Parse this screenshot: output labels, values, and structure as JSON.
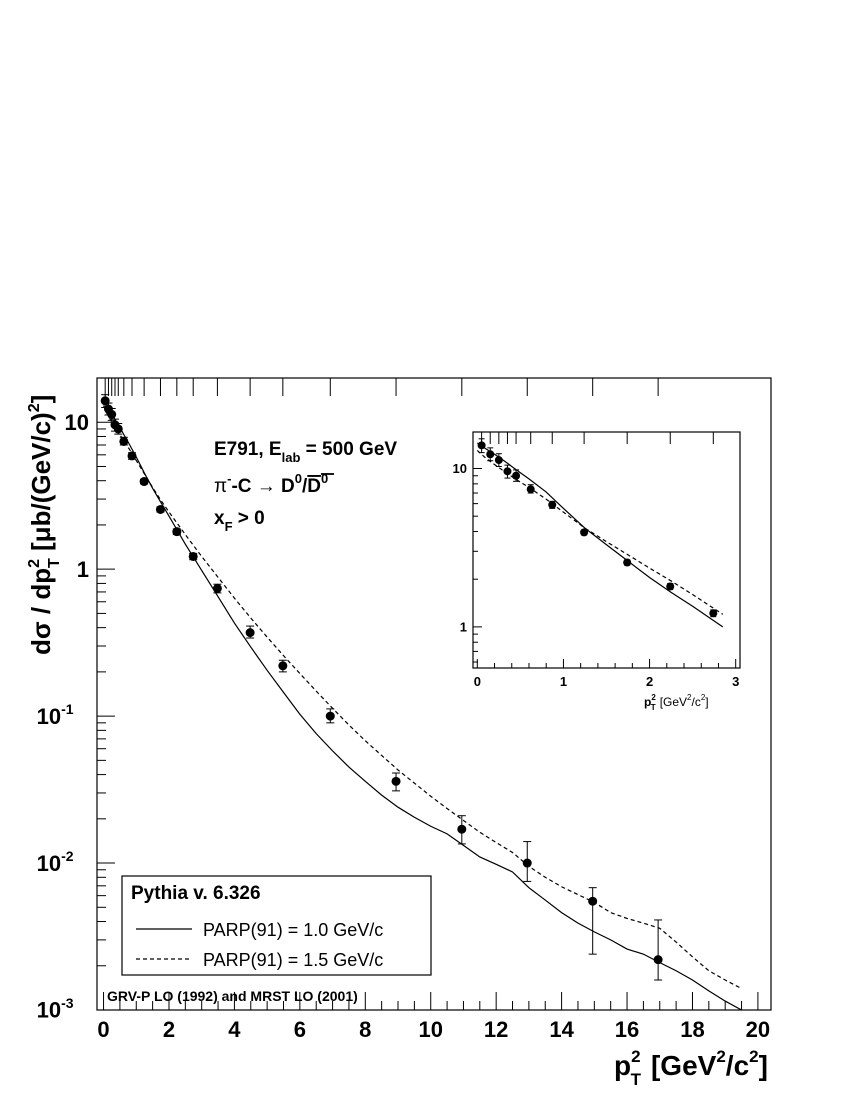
{
  "chart_data": [
    {
      "id": "main",
      "type": "scatter",
      "xscale": "linear",
      "yscale": "log",
      "xlim": [
        -0.2,
        20.4
      ],
      "ylim": [
        0.001,
        20
      ],
      "xticks": [
        0,
        2,
        4,
        6,
        8,
        10,
        12,
        14,
        16,
        18,
        20
      ],
      "xlabel": {
        "base": "p",
        "sup": "2",
        "sub": "T",
        "unit": "[GeV",
        "unit_sup": "2",
        "unit_mid": "/c",
        "unit_sup2": "2",
        "unit_end": "]"
      },
      "ylabel": {
        "a": "dσ / dp",
        "sup": "2",
        "sub": "T",
        "b": " [μb/(GeV/c)",
        "sup2": "2",
        "c": "]"
      },
      "yticks": [
        {
          "value": 10,
          "label": "10",
          "exp": ""
        },
        {
          "value": 1,
          "label": "1",
          "exp": ""
        },
        {
          "value": 0.1,
          "label": "10",
          "exp": "-1"
        },
        {
          "value": 0.01,
          "label": "10",
          "exp": "-2"
        },
        {
          "value": 0.001,
          "label": "10",
          "exp": "-3"
        }
      ],
      "rug": [
        0.05,
        0.15,
        0.25,
        0.35,
        0.45,
        0.62,
        0.87,
        1.24,
        1.74,
        2.24,
        2.74,
        3.48,
        4.48,
        5.48,
        6.93,
        8.94,
        10.95,
        12.95,
        14.95,
        16.95
      ],
      "points": [
        {
          "x": 0.05,
          "y": 14.0,
          "lo": 12.6,
          "hi": 15.4
        },
        {
          "x": 0.15,
          "y": 12.3,
          "lo": 11.2,
          "hi": 13.5
        },
        {
          "x": 0.25,
          "y": 11.3,
          "lo": 10.3,
          "hi": 12.4
        },
        {
          "x": 0.35,
          "y": 9.6,
          "lo": 8.7,
          "hi": 10.5
        },
        {
          "x": 0.45,
          "y": 9.0,
          "lo": 8.3,
          "hi": 9.8
        },
        {
          "x": 0.62,
          "y": 7.4,
          "lo": 7.0,
          "hi": 7.9
        },
        {
          "x": 0.87,
          "y": 5.9,
          "lo": 5.6,
          "hi": 6.2
        },
        {
          "x": 1.24,
          "y": 3.95,
          "lo": 3.8,
          "hi": 4.1
        },
        {
          "x": 1.74,
          "y": 2.55,
          "lo": 2.45,
          "hi": 2.65
        },
        {
          "x": 2.24,
          "y": 1.8,
          "lo": 1.72,
          "hi": 1.88
        },
        {
          "x": 2.74,
          "y": 1.22,
          "lo": 1.16,
          "hi": 1.28
        },
        {
          "x": 3.48,
          "y": 0.74,
          "lo": 0.69,
          "hi": 0.79
        },
        {
          "x": 4.48,
          "y": 0.37,
          "lo": 0.34,
          "hi": 0.41
        },
        {
          "x": 5.48,
          "y": 0.22,
          "lo": 0.2,
          "hi": 0.24
        },
        {
          "x": 6.93,
          "y": 0.1,
          "lo": 0.09,
          "hi": 0.112
        },
        {
          "x": 8.94,
          "y": 0.036,
          "lo": 0.031,
          "hi": 0.041
        },
        {
          "x": 10.95,
          "y": 0.017,
          "lo": 0.0135,
          "hi": 0.021
        },
        {
          "x": 12.95,
          "y": 0.01,
          "lo": 0.0075,
          "hi": 0.014
        },
        {
          "x": 14.95,
          "y": 0.0055,
          "lo": 0.0024,
          "hi": 0.0068
        },
        {
          "x": 16.95,
          "y": 0.0022,
          "lo": 0.0016,
          "hi": 0.0041
        }
      ],
      "series": [
        {
          "name": "PARP(91) = 1.0 GeV/c",
          "style": "solid",
          "x": [
            0.0,
            0.1,
            0.2,
            0.3,
            0.4,
            0.5,
            0.6,
            0.8,
            1.0,
            1.25,
            1.5,
            1.75,
            2.0,
            2.5,
            3.0,
            3.5,
            4.0,
            4.5,
            5.0,
            5.5,
            6.0,
            6.5,
            7.0,
            7.5,
            8.0,
            8.5,
            9.0,
            9.5,
            10.0,
            10.5,
            11.0,
            11.5,
            12.0,
            12.5,
            13.0,
            13.5,
            14.0,
            14.5,
            15.0,
            15.5,
            16.0,
            16.5,
            17.0,
            17.5,
            18.0,
            18.5,
            19.0,
            19.5
          ],
          "y": [
            14.8,
            13.2,
            12.0,
            10.9,
            10.0,
            9.2,
            8.4,
            7.0,
            5.8,
            4.5,
            3.55,
            2.85,
            2.3,
            1.48,
            0.98,
            0.65,
            0.43,
            0.295,
            0.205,
            0.145,
            0.103,
            0.076,
            0.058,
            0.045,
            0.036,
            0.029,
            0.024,
            0.0205,
            0.0178,
            0.0158,
            0.0132,
            0.011,
            0.0098,
            0.0087,
            0.0068,
            0.0056,
            0.0046,
            0.0039,
            0.0034,
            0.003,
            0.0026,
            0.0024,
            0.0021,
            0.00185,
            0.0016,
            0.00135,
            0.00115,
            0.001
          ]
        },
        {
          "name": "PARP(91) = 1.5 GeV/c",
          "style": "dashed",
          "x": [
            0.0,
            0.1,
            0.2,
            0.3,
            0.4,
            0.5,
            0.6,
            0.8,
            1.0,
            1.25,
            1.5,
            1.75,
            2.0,
            2.5,
            3.0,
            3.5,
            4.0,
            4.5,
            5.0,
            5.5,
            6.0,
            6.5,
            7.0,
            7.5,
            8.0,
            8.5,
            9.0,
            9.5,
            10.0,
            10.5,
            11.0,
            11.5,
            12.0,
            12.5,
            13.0,
            13.5,
            14.0,
            14.5,
            15.0,
            15.5,
            16.0,
            16.5,
            17.0,
            17.5,
            18.0,
            18.5,
            19.0,
            19.5
          ],
          "y": [
            13.0,
            11.5,
            10.5,
            9.6,
            8.9,
            8.2,
            7.6,
            6.5,
            5.5,
            4.45,
            3.6,
            2.95,
            2.45,
            1.72,
            1.22,
            0.88,
            0.635,
            0.465,
            0.345,
            0.258,
            0.195,
            0.148,
            0.113,
            0.087,
            0.068,
            0.054,
            0.043,
            0.035,
            0.0285,
            0.0235,
            0.0195,
            0.0162,
            0.0138,
            0.0118,
            0.0095,
            0.008,
            0.0069,
            0.0061,
            0.0054,
            0.0046,
            0.0042,
            0.0039,
            0.0036,
            0.0029,
            0.0023,
            0.00185,
            0.0016,
            0.0014
          ]
        }
      ],
      "annotations": {
        "line1_a": "E791, E",
        "line1_sub": "lab",
        "line1_b": " = 500 GeV",
        "line2_a": "π",
        "line2_sup": "-",
        "line2_b": "-C → D",
        "line2_sup2": "0",
        "line2_c": "/",
        "line2_d": "D",
        "line2_sup3": "0",
        "line3_a": "x",
        "line3_sub": "F",
        "line3_b": " > 0"
      },
      "legend": {
        "title": "Pythia v. 6.326",
        "entries": [
          "PARP(91) = 1.0 GeV/c",
          "PARP(91) = 1.5 GeV/c"
        ],
        "placement": "bottom-left"
      },
      "footnote": "GRV-P LO (1992) and MRST LO (2001)"
    },
    {
      "id": "inset",
      "type": "scatter",
      "xscale": "linear",
      "yscale": "log",
      "xlim": [
        -0.05,
        3.05
      ],
      "ylim": [
        0.55,
        17
      ],
      "xticks": [
        0,
        1,
        2,
        3
      ],
      "yticks": [
        {
          "value": 10,
          "label": "10"
        },
        {
          "value": 1,
          "label": "1"
        }
      ],
      "xlabel": {
        "base": "p",
        "sup": "2",
        "sub": "T",
        "unit": "[GeV",
        "unit_sup": "2",
        "unit_mid": "/c",
        "unit_sup2": "2",
        "unit_end": "]"
      },
      "rug": [
        0.05,
        0.15,
        0.25,
        0.35,
        0.45,
        0.62,
        0.87,
        1.24,
        1.74,
        2.24,
        2.74
      ],
      "points_range": [
        0,
        11
      ],
      "series": [
        {
          "style": "solid",
          "x": [
            0.0,
            0.1,
            0.2,
            0.3,
            0.4,
            0.5,
            0.6,
            0.8,
            1.0,
            1.25,
            1.5,
            1.75,
            2.0,
            2.25,
            2.5,
            2.85
          ],
          "y": [
            14.5,
            13.3,
            12.3,
            11.3,
            10.3,
            9.4,
            8.6,
            7.1,
            5.6,
            4.2,
            3.3,
            2.6,
            2.05,
            1.65,
            1.35,
            1.0
          ]
        },
        {
          "style": "dashed",
          "x": [
            0.0,
            0.1,
            0.2,
            0.3,
            0.4,
            0.5,
            0.6,
            0.8,
            1.0,
            1.25,
            1.5,
            1.75,
            2.0,
            2.25,
            2.5,
            2.85
          ],
          "y": [
            13.0,
            11.6,
            10.6,
            9.7,
            8.9,
            8.2,
            7.6,
            6.4,
            5.3,
            4.2,
            3.45,
            2.85,
            2.35,
            1.95,
            1.6,
            1.2
          ]
        }
      ]
    }
  ]
}
